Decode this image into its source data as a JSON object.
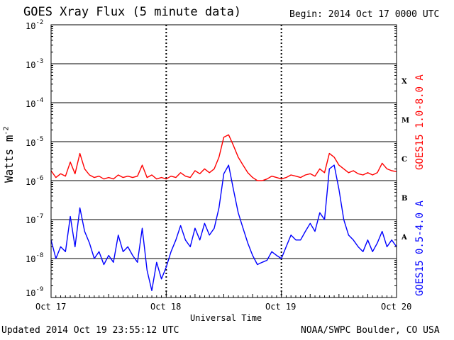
{
  "header": {
    "title": "GOES Xray Flux (5 minute data)",
    "begin": "Begin:  2014 Oct 17 0000 UTC"
  },
  "footer": {
    "updated": "Updated 2014 Oct 19 23:55:12 UTC",
    "credit": "NOAA/SWPC Boulder, CO USA"
  },
  "chart_data": {
    "type": "line",
    "xlabel": "Universal Time",
    "ylabel": {
      "text": "Watts m",
      "exp": "-2"
    },
    "yscale": "log",
    "ylim": [
      1e-09,
      0.01
    ],
    "xlim": [
      "2014-10-17 00:00",
      "2014-10-20 00:00"
    ],
    "x_ticks": [
      "Oct 17",
      "Oct 18",
      "Oct 19",
      "Oct 20"
    ],
    "y_ticks": [
      {
        "base": "10",
        "exp": "-2"
      },
      {
        "base": "10",
        "exp": "-3"
      },
      {
        "base": "10",
        "exp": "-4"
      },
      {
        "base": "10",
        "exp": "-5"
      },
      {
        "base": "10",
        "exp": "-6"
      },
      {
        "base": "10",
        "exp": "-7"
      },
      {
        "base": "10",
        "exp": "-8"
      },
      {
        "base": "10",
        "exp": "-9"
      }
    ],
    "grid": "horizontal lines at decades 1e-3 to 1e-8; dashed vertical at day boundaries",
    "flare_classes": [
      "X",
      "M",
      "C",
      "B",
      "A"
    ],
    "series": [
      {
        "name": "GOES15 1.0-8.0 A",
        "color": "#ff0000",
        "x": [
          "2014-10-17 00:00",
          "2014-10-17 01:00",
          "2014-10-17 02:00",
          "2014-10-17 03:00",
          "2014-10-17 04:00",
          "2014-10-17 05:00",
          "2014-10-17 06:00",
          "2014-10-17 07:00",
          "2014-10-17 08:00",
          "2014-10-17 09:00",
          "2014-10-17 10:00",
          "2014-10-17 11:00",
          "2014-10-17 12:00",
          "2014-10-17 13:00",
          "2014-10-17 14:00",
          "2014-10-17 15:00",
          "2014-10-17 16:00",
          "2014-10-17 17:00",
          "2014-10-17 18:00",
          "2014-10-17 19:00",
          "2014-10-17 20:00",
          "2014-10-17 21:00",
          "2014-10-17 22:00",
          "2014-10-17 23:00",
          "2014-10-18 00:00",
          "2014-10-18 01:00",
          "2014-10-18 02:00",
          "2014-10-18 03:00",
          "2014-10-18 04:00",
          "2014-10-18 05:00",
          "2014-10-18 06:00",
          "2014-10-18 07:00",
          "2014-10-18 08:00",
          "2014-10-18 09:00",
          "2014-10-18 10:00",
          "2014-10-18 11:00",
          "2014-10-18 12:00",
          "2014-10-18 13:00",
          "2014-10-18 14:00",
          "2014-10-18 15:00",
          "2014-10-18 16:00",
          "2014-10-18 17:00",
          "2014-10-18 18:00",
          "2014-10-18 19:00",
          "2014-10-18 20:00",
          "2014-10-18 21:00",
          "2014-10-18 22:00",
          "2014-10-18 23:00",
          "2014-10-19 00:00",
          "2014-10-19 01:00",
          "2014-10-19 02:00",
          "2014-10-19 03:00",
          "2014-10-19 04:00",
          "2014-10-19 05:00",
          "2014-10-19 06:00",
          "2014-10-19 07:00",
          "2014-10-19 08:00",
          "2014-10-19 09:00",
          "2014-10-19 10:00",
          "2014-10-19 11:00",
          "2014-10-19 12:00",
          "2014-10-19 13:00",
          "2014-10-19 14:00",
          "2014-10-19 15:00",
          "2014-10-19 16:00",
          "2014-10-19 17:00",
          "2014-10-19 18:00",
          "2014-10-19 19:00",
          "2014-10-19 20:00",
          "2014-10-19 21:00",
          "2014-10-19 22:00",
          "2014-10-19 23:00",
          "2014-10-20 00:00"
        ],
        "y": [
          1.8e-06,
          1.2e-06,
          1.5e-06,
          1.3e-06,
          3e-06,
          1.5e-06,
          5e-06,
          2e-06,
          1.4e-06,
          1.2e-06,
          1.3e-06,
          1.1e-06,
          1.2e-06,
          1.1e-06,
          1.4e-06,
          1.2e-06,
          1.3e-06,
          1.2e-06,
          1.3e-06,
          2.5e-06,
          1.2e-06,
          1.4e-06,
          1.1e-06,
          1.2e-06,
          1.1e-06,
          1.3e-06,
          1.2e-06,
          1.6e-06,
          1.3e-06,
          1.2e-06,
          1.8e-06,
          1.5e-06,
          2e-06,
          1.6e-06,
          2e-06,
          4e-06,
          1.3e-05,
          1.5e-05,
          8e-06,
          4e-06,
          2.5e-06,
          1.6e-06,
          1.2e-06,
          1e-06,
          1e-06,
          1.1e-06,
          1.3e-06,
          1.2e-06,
          1.1e-06,
          1.2e-06,
          1.4e-06,
          1.3e-06,
          1.2e-06,
          1.4e-06,
          1.5e-06,
          1.3e-06,
          2e-06,
          1.6e-06,
          5e-06,
          4e-06,
          2.5e-06,
          2e-06,
          1.6e-06,
          1.8e-06,
          1.5e-06,
          1.4e-06,
          1.6e-06,
          1.4e-06,
          1.6e-06,
          2.8e-06,
          2e-06,
          1.8e-06,
          1.7e-06
        ]
      },
      {
        "name": "GOES15 0.5-4.0 A",
        "color": "#0000ff",
        "x": [
          "2014-10-17 00:00",
          "2014-10-17 01:00",
          "2014-10-17 02:00",
          "2014-10-17 03:00",
          "2014-10-17 04:00",
          "2014-10-17 05:00",
          "2014-10-17 06:00",
          "2014-10-17 07:00",
          "2014-10-17 08:00",
          "2014-10-17 09:00",
          "2014-10-17 10:00",
          "2014-10-17 11:00",
          "2014-10-17 12:00",
          "2014-10-17 13:00",
          "2014-10-17 14:00",
          "2014-10-17 15:00",
          "2014-10-17 16:00",
          "2014-10-17 17:00",
          "2014-10-17 18:00",
          "2014-10-17 19:00",
          "2014-10-17 20:00",
          "2014-10-17 21:00",
          "2014-10-17 22:00",
          "2014-10-17 23:00",
          "2014-10-18 00:00",
          "2014-10-18 01:00",
          "2014-10-18 02:00",
          "2014-10-18 03:00",
          "2014-10-18 04:00",
          "2014-10-18 05:00",
          "2014-10-18 06:00",
          "2014-10-18 07:00",
          "2014-10-18 08:00",
          "2014-10-18 09:00",
          "2014-10-18 10:00",
          "2014-10-18 11:00",
          "2014-10-18 12:00",
          "2014-10-18 13:00",
          "2014-10-18 14:00",
          "2014-10-18 15:00",
          "2014-10-18 16:00",
          "2014-10-18 17:00",
          "2014-10-18 18:00",
          "2014-10-18 19:00",
          "2014-10-18 20:00",
          "2014-10-18 21:00",
          "2014-10-18 22:00",
          "2014-10-18 23:00",
          "2014-10-19 00:00",
          "2014-10-19 01:00",
          "2014-10-19 02:00",
          "2014-10-19 03:00",
          "2014-10-19 04:00",
          "2014-10-19 05:00",
          "2014-10-19 06:00",
          "2014-10-19 07:00",
          "2014-10-19 08:00",
          "2014-10-19 09:00",
          "2014-10-19 10:00",
          "2014-10-19 11:00",
          "2014-10-19 12:00",
          "2014-10-19 13:00",
          "2014-10-19 14:00",
          "2014-10-19 15:00",
          "2014-10-19 16:00",
          "2014-10-19 17:00",
          "2014-10-19 18:00",
          "2014-10-19 19:00",
          "2014-10-19 20:00",
          "2014-10-19 21:00",
          "2014-10-19 22:00",
          "2014-10-19 23:00",
          "2014-10-20 00:00"
        ],
        "y": [
          3e-08,
          1e-08,
          2e-08,
          1.5e-08,
          1.2e-07,
          2e-08,
          2e-07,
          5e-08,
          2.5e-08,
          1e-08,
          1.5e-08,
          7e-09,
          1.2e-08,
          8e-09,
          4e-08,
          1.5e-08,
          2e-08,
          1.2e-08,
          8e-09,
          6e-08,
          5e-09,
          1.5e-09,
          8e-09,
          3e-09,
          6e-09,
          1.5e-08,
          3e-08,
          7e-08,
          3e-08,
          2e-08,
          6e-08,
          3e-08,
          8e-08,
          4e-08,
          6e-08,
          2e-07,
          1.5e-06,
          2.5e-06,
          6e-07,
          1.5e-07,
          6e-08,
          2.5e-08,
          1.2e-08,
          7e-09,
          8e-09,
          9e-09,
          1.5e-08,
          1.2e-08,
          1e-08,
          2e-08,
          4e-08,
          3e-08,
          3e-08,
          5e-08,
          8e-08,
          5e-08,
          1.5e-07,
          1e-07,
          2e-06,
          2.5e-06,
          6e-07,
          1e-07,
          4e-08,
          3e-08,
          2e-08,
          1.5e-08,
          3e-08,
          1.5e-08,
          2.5e-08,
          5e-08,
          2e-08,
          3e-08,
          2e-08
        ]
      }
    ]
  }
}
